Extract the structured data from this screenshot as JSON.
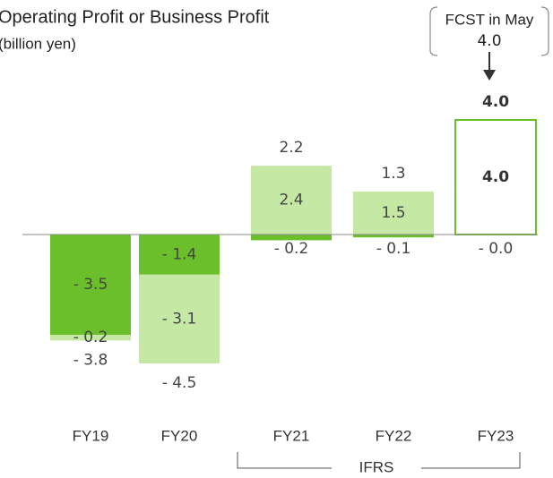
{
  "chart_data": {
    "type": "stacked_bar",
    "title": "Operating Profit or Business Profit",
    "subtitle": "(billion yen)",
    "categories": [
      "FY19",
      "FY20",
      "FY21",
      "FY22",
      "FY23"
    ],
    "series": [
      {
        "color": "#6abf2a",
        "values": [
          -3.5,
          -1.4,
          -0.2,
          -0.1,
          -0.0
        ],
        "value_labels": [
          "- 3.5",
          "- 1.4",
          "- 0.2",
          "- 0.1",
          "- 0.0"
        ]
      },
      {
        "color": "#c5e8a5",
        "values": [
          -0.2,
          -3.1,
          2.4,
          1.5,
          null
        ],
        "value_labels": [
          "- 0.2",
          "- 3.1",
          "2.4",
          "1.5",
          null
        ]
      },
      {
        "color": "#6abf2a",
        "fill": "none",
        "values": [
          null,
          null,
          null,
          null,
          4.0
        ],
        "value_labels": [
          null,
          null,
          null,
          null,
          "4.0"
        ]
      }
    ],
    "totals": {
      "values": [
        -3.8,
        -4.5,
        2.2,
        1.3,
        4.0
      ],
      "value_labels": [
        "- 3.8",
        "- 4.5",
        "2.2",
        "1.3",
        "4.0"
      ],
      "bold": [
        false,
        false,
        false,
        false,
        true
      ]
    },
    "annotation": {
      "title": "FCST in May",
      "value": 4.0,
      "value_label": "4.0"
    },
    "group_label": "IFRS",
    "ylim": [
      -6,
      4.5
    ]
  }
}
